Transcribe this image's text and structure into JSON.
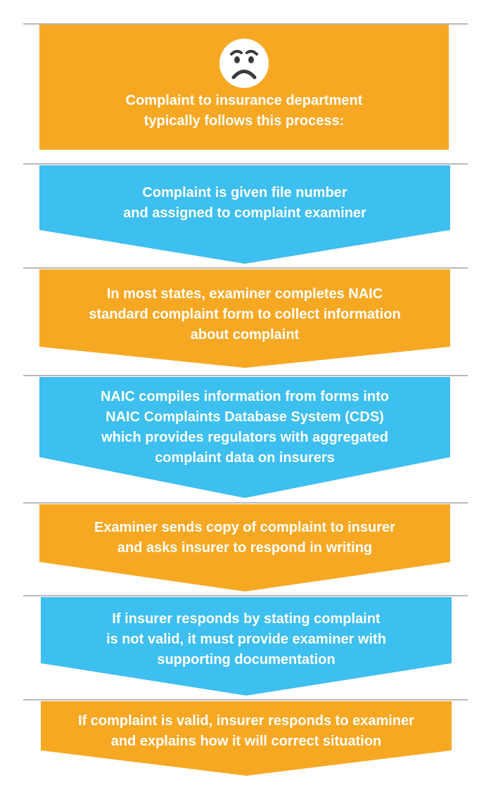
{
  "colors": {
    "orange": "#F7A823",
    "blue": "#3DBFEF",
    "divider": "#B8B8B8",
    "face": "#ffffff",
    "face_features": "#3a3a3a"
  },
  "header": {
    "icon": "sad-face-icon",
    "lines": [
      "Complaint to insurance department",
      "typically follows this process:"
    ]
  },
  "steps": [
    {
      "color": "blue",
      "lines": [
        "Complaint is given file number",
        "and assigned to complaint examiner"
      ]
    },
    {
      "color": "orange",
      "lines": [
        "In most states, examiner completes NAIC",
        "standard complaint form to collect information",
        "about complaint"
      ]
    },
    {
      "color": "blue",
      "lines": [
        "NAIC compiles information from forms into",
        "NAIC Complaints Database System (CDS)",
        "which provides regulators with aggregated",
        "complaint data on insurers"
      ]
    },
    {
      "color": "orange",
      "lines": [
        "Examiner sends copy of complaint to insurer",
        "and asks insurer to respond in writing"
      ]
    },
    {
      "color": "blue",
      "lines": [
        "If insurer responds by stating complaint",
        "is not valid, it must provide examiner with",
        "supporting documentation"
      ]
    },
    {
      "color": "orange",
      "lines": [
        "If complaint is valid, insurer responds to examiner",
        "and explains how it will correct situation"
      ]
    }
  ]
}
